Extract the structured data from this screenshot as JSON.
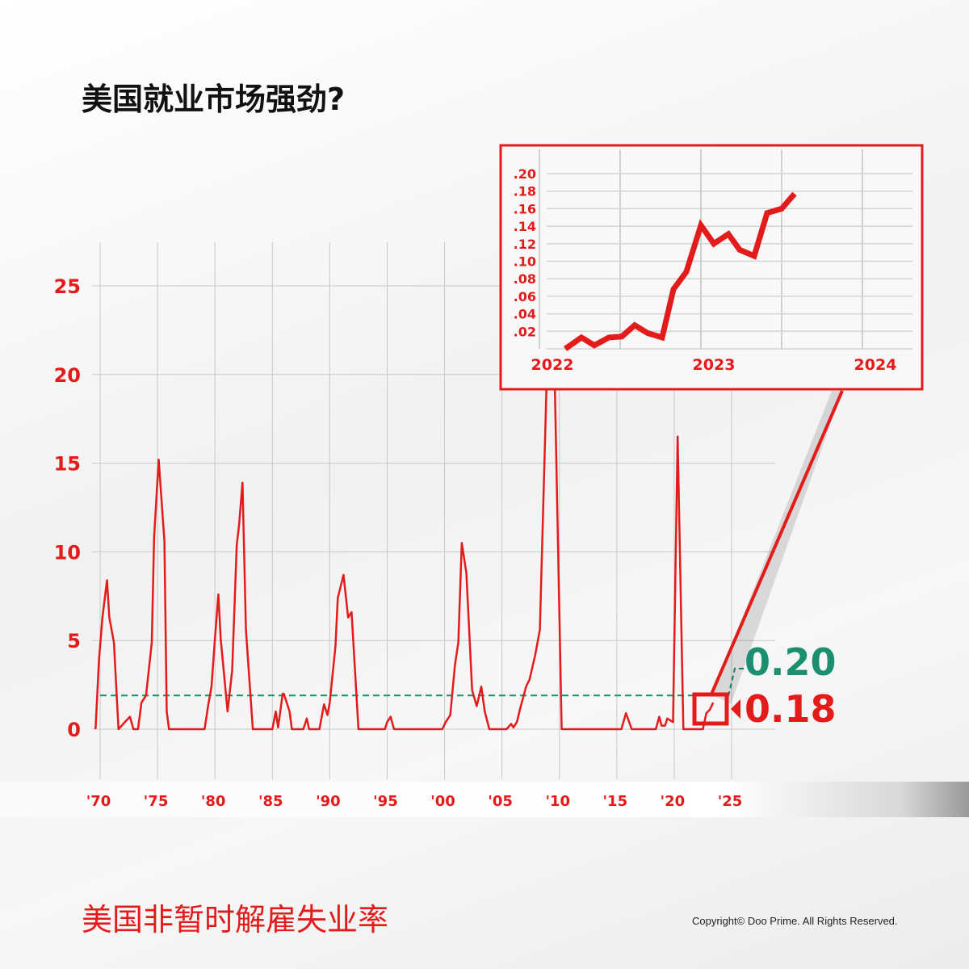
{
  "title": "美国就业市场强劲?",
  "subtitle": "美国非暂时解雇失业率",
  "copyright": "Copyright© Doo Prime. All Rights Reserved.",
  "colors": {
    "line": "#e41b1b",
    "reference": "#1a9070",
    "grid": "#c8c8c8"
  },
  "chart_data": [
    {
      "type": "line",
      "ylim": [
        0,
        25
      ],
      "xlim": [
        1970,
        2025
      ],
      "yticks": [
        "0",
        "5",
        "10",
        "15",
        "20",
        "25"
      ],
      "ytick_values": [
        0,
        5,
        10,
        15,
        20,
        25
      ],
      "xticks": [
        "'70",
        "'75",
        "'80",
        "'85",
        "'90",
        "'95",
        "'00",
        "'05",
        "'10",
        "'15",
        "'20",
        "'25"
      ],
      "xtick_values": [
        1970,
        1975,
        1980,
        1985,
        1990,
        1995,
        2000,
        2005,
        2010,
        2015,
        2020,
        2025
      ],
      "grid": true,
      "reference_line": 1.9,
      "annotations": [
        {
          "text": "0.20",
          "color": "#1a9070"
        },
        {
          "text": "0.18",
          "color": "#e41b1b"
        }
      ],
      "series": [
        {
          "x": [
            1969.6,
            1969.9,
            1970.2,
            1970.6,
            1970.8,
            1971.2,
            1971.6,
            1972.3,
            1972.6,
            1972.9,
            1973.3,
            1973.6,
            1974.0,
            1974.5,
            1974.7,
            1975.1,
            1975.6,
            1975.8,
            1976.0,
            1979.1,
            1979.4,
            1979.7,
            1980.0,
            1980.3,
            1980.5,
            1981.1,
            1981.5,
            1981.9,
            1982.1,
            1982.4,
            1982.7,
            1983.3,
            1985.0,
            1985.3,
            1985.5,
            1985.9,
            1986.0,
            1986.5,
            1986.7,
            1987.7,
            1988.0,
            1988.2,
            1989.1,
            1989.5,
            1989.8,
            1990.0,
            1990.5,
            1990.7,
            1991.2,
            1991.6,
            1991.9,
            1992.5,
            1994.8,
            1995.0,
            1995.3,
            1995.6,
            1999.8,
            2000.1,
            2000.5,
            2000.9,
            2001.2,
            2001.5,
            2001.9,
            2002.4,
            2002.8,
            2003.2,
            2003.5,
            2003.9,
            2005.4,
            2005.8,
            2006.0,
            2006.3,
            2006.6,
            2007.1,
            2007.4,
            2007.9,
            2008.3,
            2009.3,
            2010.2,
            2015.4,
            2015.8,
            2016.3,
            2018.4,
            2018.7,
            2018.9,
            2019.2,
            2019.4,
            2019.9,
            2020.3,
            2020.8,
            2022.5,
            2022.8,
            2023.1,
            2023.4
          ],
          "y": [
            0,
            3.9,
            6.3,
            8.4,
            6.3,
            4.9,
            0,
            0.5,
            0.7,
            0,
            0,
            1.5,
            1.9,
            4.9,
            10.8,
            15.2,
            10.6,
            1.0,
            0,
            0,
            1.3,
            2.4,
            5.1,
            7.6,
            5.1,
            1.0,
            3.3,
            10.4,
            11.5,
            13.9,
            5.6,
            0,
            0,
            1.0,
            0.1,
            2.0,
            2.0,
            1.0,
            0,
            0,
            0.6,
            0,
            0,
            1.4,
            0.8,
            1.5,
            4.7,
            7.4,
            8.7,
            6.3,
            6.6,
            0,
            0,
            0.4,
            0.7,
            0,
            0,
            0.4,
            0.8,
            3.6,
            4.9,
            10.5,
            8.8,
            2.2,
            1.3,
            2.4,
            1.0,
            0,
            0,
            0.3,
            0.1,
            0.4,
            1.2,
            2.4,
            2.8,
            4.2,
            5.6,
            29.3,
            0,
            0,
            0.9,
            0,
            0,
            0.7,
            0.2,
            0.2,
            0.6,
            0.4,
            16.5,
            0,
            0,
            0.9,
            1.1,
            1.5
          ]
        }
      ]
    },
    {
      "type": "line",
      "ylim": [
        0,
        0.2
      ],
      "xlim": [
        2022,
        2024
      ],
      "yticks": [
        ".02",
        ".04",
        ".06",
        ".08",
        ".10",
        ".12",
        ".14",
        ".16",
        ".18",
        ".20"
      ],
      "ytick_values": [
        0.02,
        0.04,
        0.06,
        0.08,
        0.1,
        0.12,
        0.14,
        0.16,
        0.18,
        0.2
      ],
      "xticks": [
        "2022",
        "2023",
        "2024"
      ],
      "xtick_values": [
        2022,
        2023,
        2024
      ],
      "grid": true,
      "series": [
        {
          "x": [
            2022.08,
            2022.18,
            2022.26,
            2022.35,
            2022.43,
            2022.51,
            2022.59,
            2022.68,
            2022.75,
            2022.83,
            2022.92,
            2023.0,
            2023.09,
            2023.16,
            2023.25,
            2023.33,
            2023.42,
            2023.5
          ],
          "y": [
            0.0,
            0.013,
            0.004,
            0.013,
            0.014,
            0.027,
            0.018,
            0.013,
            0.068,
            0.088,
            0.141,
            0.12,
            0.131,
            0.113,
            0.106,
            0.155,
            0.16,
            0.177
          ]
        }
      ]
    }
  ]
}
